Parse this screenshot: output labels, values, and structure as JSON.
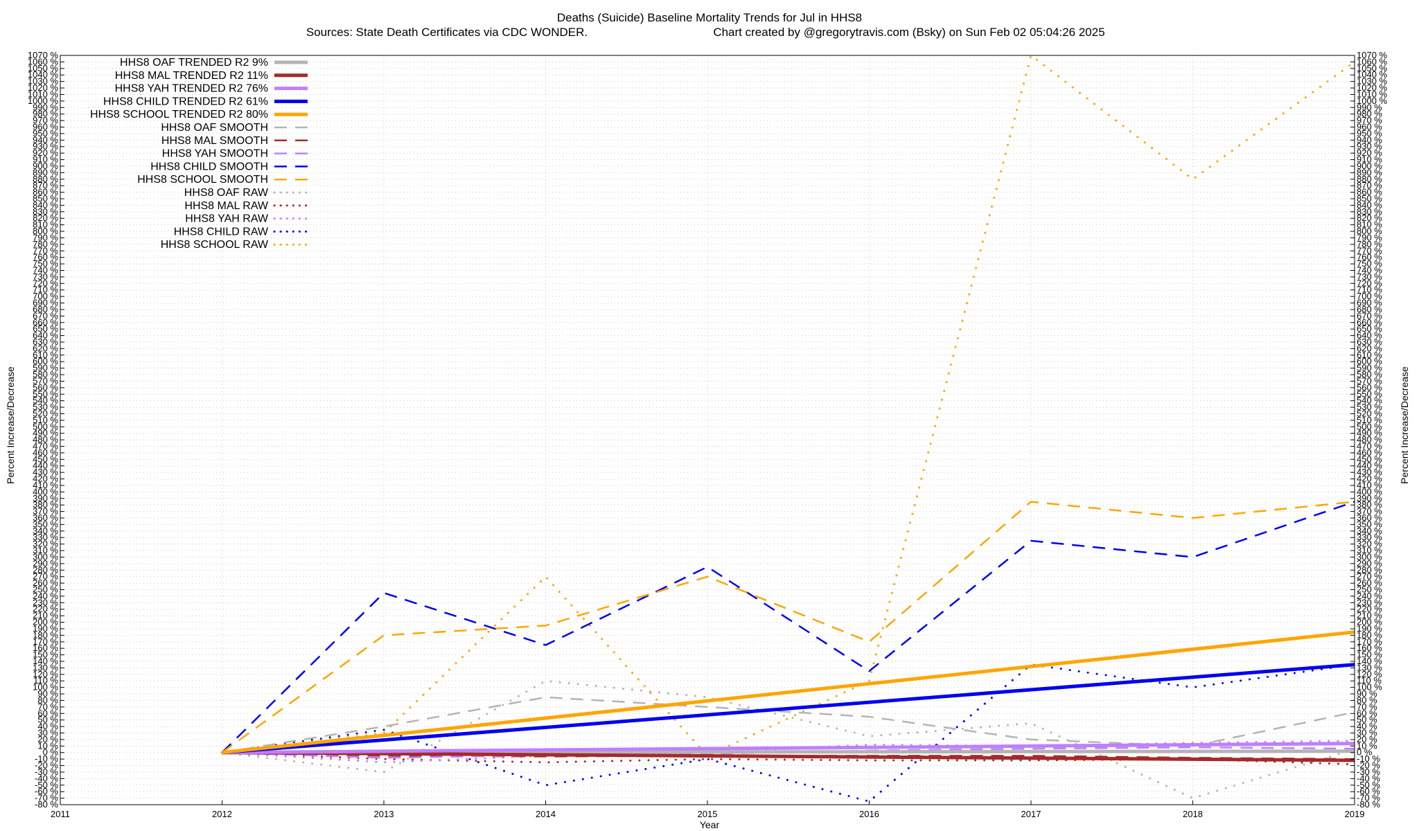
{
  "chart_data": {
    "type": "line",
    "title": "Deaths (Suicide)  Baseline Mortality Trends for Jul in HHS8",
    "subtitle_left": "Sources: State Death Certificates via CDC WONDER.",
    "subtitle_right": "Chart created by @gregorytravis.com (Bsky) on Sun Feb 02 05:04:26 2025",
    "xlabel": "Year",
    "ylabel_left": "Percent Increase/Decrease",
    "ylabel_right": "Percent Increase/Decrease",
    "xlim": [
      2011,
      2019
    ],
    "ylim": [
      -80,
      1070
    ],
    "x_ticks": [
      "2011",
      "2012",
      "2013",
      "2014",
      "2015",
      "2016",
      "2017",
      "2018",
      "2019"
    ],
    "y_tick_step": 10,
    "y_tick_suffix": " %",
    "grid": true,
    "legend_position": "top-left",
    "series": [
      {
        "name": "HHS8 OAF TRENDED R2  9%",
        "style": "solid",
        "color": "#b4b4b4",
        "x": [
          2012,
          2019
        ],
        "y": [
          0,
          2
        ]
      },
      {
        "name": "HHS8 MAL TRENDED R2  11%",
        "style": "solid",
        "color": "#a52a2a",
        "x": [
          2012,
          2019
        ],
        "y": [
          0,
          -12
        ]
      },
      {
        "name": "HHS8 YAH TRENDED R2  76%",
        "style": "solid",
        "color": "#bf7fff",
        "x": [
          2012,
          2019
        ],
        "y": [
          0,
          14
        ]
      },
      {
        "name": "HHS8 CHILD TRENDED R2  61%",
        "style": "solid",
        "color": "#0000ee",
        "x": [
          2012,
          2019
        ],
        "y": [
          0,
          135
        ]
      },
      {
        "name": "HHS8 SCHOOL TRENDED R2  80%",
        "style": "solid",
        "color": "#ffa500",
        "x": [
          2012,
          2019
        ],
        "y": [
          0,
          185
        ]
      },
      {
        "name": "HHS8 OAF SMOOTH",
        "style": "dashed",
        "color": "#b4b4b4",
        "x": [
          2012,
          2013,
          2014,
          2015,
          2016,
          2017,
          2018,
          2019
        ],
        "y": [
          0,
          40,
          85,
          70,
          55,
          20,
          10,
          62
        ]
      },
      {
        "name": "HHS8 MAL SMOOTH",
        "style": "dashed",
        "color": "#a52a2a",
        "x": [
          2012,
          2013,
          2014,
          2015,
          2016,
          2017,
          2018,
          2019
        ],
        "y": [
          0,
          -5,
          -6,
          -5,
          -5,
          -5,
          -8,
          -10
        ]
      },
      {
        "name": "HHS8 YAH SMOOTH",
        "style": "dashed",
        "color": "#bf7fff",
        "x": [
          2012,
          2013,
          2014,
          2015,
          2016,
          2017,
          2018,
          2019
        ],
        "y": [
          0,
          -8,
          -4,
          -2,
          3,
          6,
          8,
          6
        ]
      },
      {
        "name": "HHS8 CHILD SMOOTH",
        "style": "dashed",
        "color": "#0000ee",
        "x": [
          2012,
          2013,
          2014,
          2015,
          2016,
          2017,
          2018,
          2019
        ],
        "y": [
          0,
          245,
          165,
          285,
          125,
          325,
          300,
          385
        ]
      },
      {
        "name": "HHS8 SCHOOL SMOOTH",
        "style": "dashed",
        "color": "#ffa500",
        "x": [
          2012,
          2013,
          2014,
          2015,
          2016,
          2017,
          2018,
          2019
        ],
        "y": [
          0,
          180,
          195,
          270,
          170,
          385,
          360,
          385
        ]
      },
      {
        "name": "HHS8 OAF RAW",
        "style": "dotted",
        "color": "#b4b4b4",
        "x": [
          2012,
          2013,
          2014,
          2015,
          2016,
          2017,
          2018,
          2019
        ],
        "y": [
          0,
          -30,
          110,
          85,
          25,
          45,
          -70,
          5
        ]
      },
      {
        "name": "HHS8 MAL RAW",
        "style": "dotted",
        "color": "#a52a2a",
        "x": [
          2012,
          2013,
          2014,
          2015,
          2016,
          2017,
          2018,
          2019
        ],
        "y": [
          0,
          -10,
          -15,
          -10,
          -12,
          -12,
          -10,
          -18
        ]
      },
      {
        "name": "HHS8 YAH RAW",
        "style": "dotted",
        "color": "#bf7fff",
        "x": [
          2012,
          2013,
          2014,
          2015,
          2016,
          2017,
          2018,
          2019
        ],
        "y": [
          0,
          -15,
          -5,
          0,
          12,
          10,
          15,
          18
        ]
      },
      {
        "name": "HHS8 CHILD RAW",
        "style": "dotted",
        "color": "#0000ee",
        "x": [
          2012,
          2013,
          2014,
          2015,
          2016,
          2017,
          2018,
          2019
        ],
        "y": [
          0,
          35,
          -50,
          -10,
          -75,
          135,
          100,
          135
        ]
      },
      {
        "name": "HHS8 SCHOOL RAW",
        "style": "dotted",
        "color": "#ffa500",
        "x": [
          2012,
          2013,
          2014,
          2015,
          2016,
          2017,
          2018,
          2019
        ],
        "y": [
          0,
          30,
          270,
          -5,
          110,
          1070,
          880,
          1060
        ]
      }
    ]
  }
}
